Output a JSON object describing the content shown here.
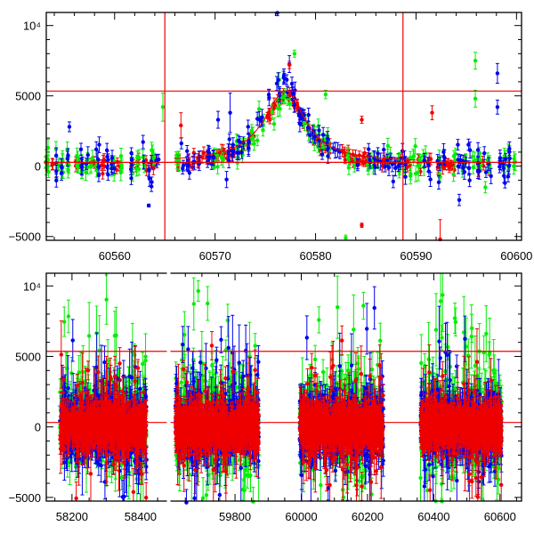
{
  "chart_data": [
    {
      "type": "scatter",
      "panel": "top",
      "title": "",
      "xlabel": "",
      "ylabel": "",
      "xlim": [
        60553.2,
        60600.5
      ],
      "ylim": [
        -5270,
        10930
      ],
      "x_ticks": [
        60560,
        60570,
        60580,
        60590,
        60600
      ],
      "x_tick_labels": [
        "60560",
        "60570",
        "60580",
        "60590",
        "60600"
      ],
      "y_ticks": [
        -5000,
        0,
        5000,
        10000
      ],
      "y_tick_labels": [
        "−5000",
        "0",
        "5000",
        "10⁴"
      ],
      "reference_lines": {
        "vertical": [
          60565.0,
          60588.7
        ],
        "horizontal": [
          5340,
          275
        ]
      },
      "model_curve": {
        "peak_x": 60577.0,
        "peak_y": 5350,
        "baseline": 275,
        "rise_width": 2.6,
        "fall_width": 2.4
      },
      "series": [
        {
          "name": "blue",
          "color": "#0000ee"
        },
        {
          "name": "green",
          "color": "#00ee00"
        },
        {
          "name": "red",
          "color": "#ee0000"
        }
      ],
      "outliers": [
        {
          "series": "blue",
          "x": 60576.2,
          "y": 10900,
          "err": 200
        },
        {
          "series": "blue",
          "x": 60555.5,
          "y": 2800,
          "err": 350
        },
        {
          "series": "blue",
          "x": 60563.4,
          "y": -2800,
          "err": 100
        },
        {
          "series": "blue",
          "x": 60571.5,
          "y": 3800,
          "err": 1400
        },
        {
          "series": "blue",
          "x": 60570.3,
          "y": 3300,
          "err": 600
        },
        {
          "series": "blue",
          "x": 60594.3,
          "y": -2400,
          "err": 400
        },
        {
          "series": "blue",
          "x": 60598.1,
          "y": 6600,
          "err": 700
        },
        {
          "series": "blue",
          "x": 60598.1,
          "y": 4200,
          "err": 500
        },
        {
          "series": "green",
          "x": 60564.8,
          "y": 4200,
          "err": 1000
        },
        {
          "series": "green",
          "x": 60577.9,
          "y": 8000,
          "err": 250
        },
        {
          "series": "green",
          "x": 60581.0,
          "y": 5100,
          "err": 300
        },
        {
          "series": "green",
          "x": 60583.0,
          "y": -5100,
          "err": 200
        },
        {
          "series": "green",
          "x": 60595.9,
          "y": 7500,
          "err": 600
        },
        {
          "series": "green",
          "x": 60595.9,
          "y": 4800,
          "err": 600
        },
        {
          "series": "green",
          "x": 60596.9,
          "y": -1500,
          "err": 400
        },
        {
          "series": "red",
          "x": 60584.6,
          "y": 3300,
          "err": 250
        },
        {
          "series": "red",
          "x": 60584.6,
          "y": -4200,
          "err": 150
        },
        {
          "series": "red",
          "x": 60591.6,
          "y": 3800,
          "err": 500
        },
        {
          "series": "red",
          "x": 60592.4,
          "y": -5200,
          "err": 1400
        },
        {
          "series": "red",
          "x": 60566.6,
          "y": 2900,
          "err": 900
        },
        {
          "series": "red",
          "x": 60577.4,
          "y": 7200,
          "err": 250
        }
      ]
    },
    {
      "type": "scatter",
      "panel": "bottom",
      "title": "",
      "xlabel": "",
      "ylabel": "",
      "broken_x_axis": [
        [
          58125,
          58477
        ],
        [
          59605,
          60665
        ]
      ],
      "ylim": [
        -5260,
        10900
      ],
      "x_ticks": [
        58200,
        58400,
        59800,
        60000,
        60200,
        60400,
        60600
      ],
      "x_tick_labels": [
        "58200",
        "58400",
        "59800",
        "60000",
        "60200",
        "60400",
        "60600"
      ],
      "y_ticks": [
        -5000,
        0,
        5000,
        10000
      ],
      "y_tick_labels": [
        "−5000",
        "0",
        "5000",
        "10⁴"
      ],
      "reference_lines": {
        "horizontal": [
          5360,
          315
        ]
      },
      "seasons": [
        [
          58165,
          58418
        ],
        [
          59620,
          59872
        ],
        [
          59995,
          60248
        ],
        [
          60360,
          60605
        ]
      ],
      "series": [
        {
          "name": "blue",
          "color": "#0000ee"
        },
        {
          "name": "green",
          "color": "#00ee00"
        },
        {
          "name": "red",
          "color": "#ee0000"
        }
      ]
    }
  ]
}
